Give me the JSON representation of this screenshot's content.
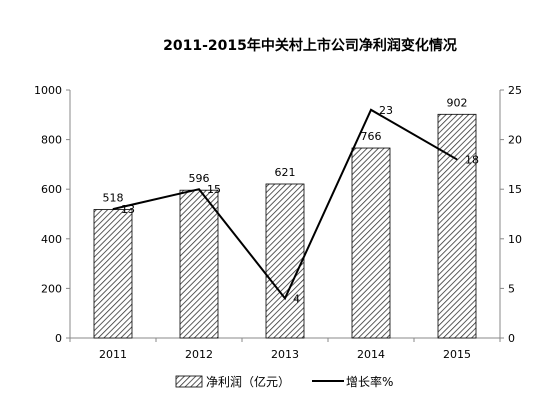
{
  "chart_data": {
    "type": "bar",
    "title": "2011-2015年中关村上市公司净利润变化情况",
    "categories": [
      "2011",
      "2012",
      "2013",
      "2014",
      "2015"
    ],
    "series": [
      {
        "name": "净利润（亿元）",
        "type": "bar",
        "axis": "left",
        "values": [
          518,
          596,
          621,
          766,
          902
        ]
      },
      {
        "name": "增长率%",
        "type": "line",
        "axis": "right",
        "values": [
          13,
          15,
          4,
          23,
          18
        ]
      }
    ],
    "ylim_left": [
      0,
      1000
    ],
    "yticks_left": [
      "0",
      "200",
      "400",
      "600",
      "800",
      "1000"
    ],
    "ylim_right": [
      0,
      25
    ],
    "yticks_right": [
      "0",
      "5",
      "10",
      "15",
      "20",
      "25"
    ],
    "grid": false,
    "legend_position": "bottom",
    "bar_pattern": "diagonal-hatch",
    "line_color": "#000000"
  }
}
